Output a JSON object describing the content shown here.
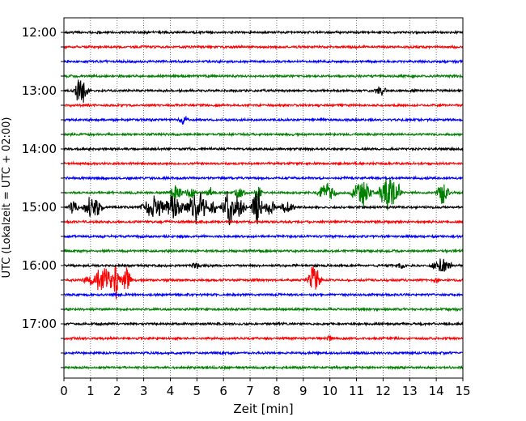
{
  "chart_data": {
    "type": "line",
    "title": "",
    "xlabel": "Zeit  [min]",
    "ylabel": "UTC (Lokalzeit = UTC + 02:00)",
    "xlim": [
      0,
      15
    ],
    "x_ticks": [
      0,
      1,
      2,
      3,
      4,
      5,
      6,
      7,
      8,
      9,
      10,
      11,
      12,
      13,
      14,
      15
    ],
    "x_tick_labels": [
      "0",
      "1",
      "2",
      "3",
      "4",
      "5",
      "6",
      "7",
      "8",
      "9",
      "10",
      "11",
      "12",
      "13",
      "14",
      "15"
    ],
    "y_tick_labels": [
      "12:00",
      "13:00",
      "14:00",
      "15:00",
      "16:00",
      "17:00"
    ],
    "grid": "vertical dotted",
    "trace_colors": [
      "#000000",
      "#ff0000",
      "#0000ff",
      "#008000"
    ],
    "traces": [
      {
        "start": "12:00",
        "events": []
      },
      {
        "start": "12:15",
        "events": []
      },
      {
        "start": "12:30",
        "events": []
      },
      {
        "start": "12:45",
        "events": []
      },
      {
        "start": "13:00",
        "events": [
          {
            "t": 0.65,
            "amp": 0.95,
            "dur": 0.25
          },
          {
            "t": 11.9,
            "amp": 0.25,
            "dur": 0.35
          }
        ]
      },
      {
        "start": "13:15",
        "events": []
      },
      {
        "start": "13:30",
        "events": [
          {
            "t": 4.5,
            "amp": 0.25,
            "dur": 0.3
          }
        ]
      },
      {
        "start": "13:45",
        "events": []
      },
      {
        "start": "14:00",
        "events": []
      },
      {
        "start": "14:15",
        "events": []
      },
      {
        "start": "14:30",
        "events": []
      },
      {
        "start": "14:45",
        "events": [
          {
            "t": 4.2,
            "amp": 0.45,
            "dur": 0.3
          },
          {
            "t": 4.75,
            "amp": 0.3,
            "dur": 0.25
          },
          {
            "t": 5.5,
            "amp": 0.25,
            "dur": 0.25
          },
          {
            "t": 6.6,
            "amp": 0.3,
            "dur": 0.3
          },
          {
            "t": 7.3,
            "amp": 0.4,
            "dur": 0.2
          },
          {
            "t": 9.9,
            "amp": 0.55,
            "dur": 0.45
          },
          {
            "t": 11.2,
            "amp": 0.7,
            "dur": 0.45
          },
          {
            "t": 12.2,
            "amp": 0.9,
            "dur": 0.45
          },
          {
            "t": 12.55,
            "amp": 0.45,
            "dur": 0.2
          },
          {
            "t": 14.25,
            "amp": 0.55,
            "dur": 0.3
          }
        ]
      },
      {
        "start": "15:00",
        "events": [
          {
            "t": 0.35,
            "amp": 0.3,
            "dur": 0.3
          },
          {
            "t": 1.1,
            "amp": 0.55,
            "dur": 0.45
          },
          {
            "t": 3.4,
            "amp": 0.5,
            "dur": 0.6
          },
          {
            "t": 4.15,
            "amp": 0.6,
            "dur": 0.5
          },
          {
            "t": 5.0,
            "amp": 0.75,
            "dur": 0.55
          },
          {
            "t": 5.6,
            "amp": 0.35,
            "dur": 0.3
          },
          {
            "t": 6.2,
            "amp": 0.95,
            "dur": 0.3
          },
          {
            "t": 6.6,
            "amp": 0.6,
            "dur": 0.3
          },
          {
            "t": 7.25,
            "amp": 1.0,
            "dur": 0.25
          },
          {
            "t": 7.75,
            "amp": 0.5,
            "dur": 0.25
          },
          {
            "t": 8.4,
            "amp": 0.4,
            "dur": 0.3
          }
        ]
      },
      {
        "start": "15:15",
        "events": []
      },
      {
        "start": "15:30",
        "events": []
      },
      {
        "start": "15:45",
        "events": []
      },
      {
        "start": "16:00",
        "events": [
          {
            "t": 4.95,
            "amp": 0.2,
            "dur": 0.2
          },
          {
            "t": 12.7,
            "amp": 0.2,
            "dur": 0.2
          },
          {
            "t": 14.2,
            "amp": 0.4,
            "dur": 0.5
          }
        ]
      },
      {
        "start": "16:15",
        "events": [
          {
            "t": 1.55,
            "amp": 0.55,
            "dur": 0.9
          },
          {
            "t": 1.95,
            "amp": 1.0,
            "dur": 0.15
          },
          {
            "t": 2.35,
            "amp": 0.55,
            "dur": 0.25
          },
          {
            "t": 7.2,
            "amp": 0.2,
            "dur": 0.15
          },
          {
            "t": 9.4,
            "amp": 0.7,
            "dur": 0.3
          },
          {
            "t": 14.0,
            "amp": 0.15,
            "dur": 0.2
          }
        ]
      },
      {
        "start": "16:30",
        "events": []
      },
      {
        "start": "16:45",
        "events": []
      },
      {
        "start": "17:00",
        "events": []
      },
      {
        "start": "17:15",
        "events": [
          {
            "t": 10.0,
            "amp": 0.15,
            "dur": 0.2
          }
        ]
      },
      {
        "start": "17:30",
        "events": []
      },
      {
        "start": "17:45",
        "events": []
      }
    ]
  }
}
